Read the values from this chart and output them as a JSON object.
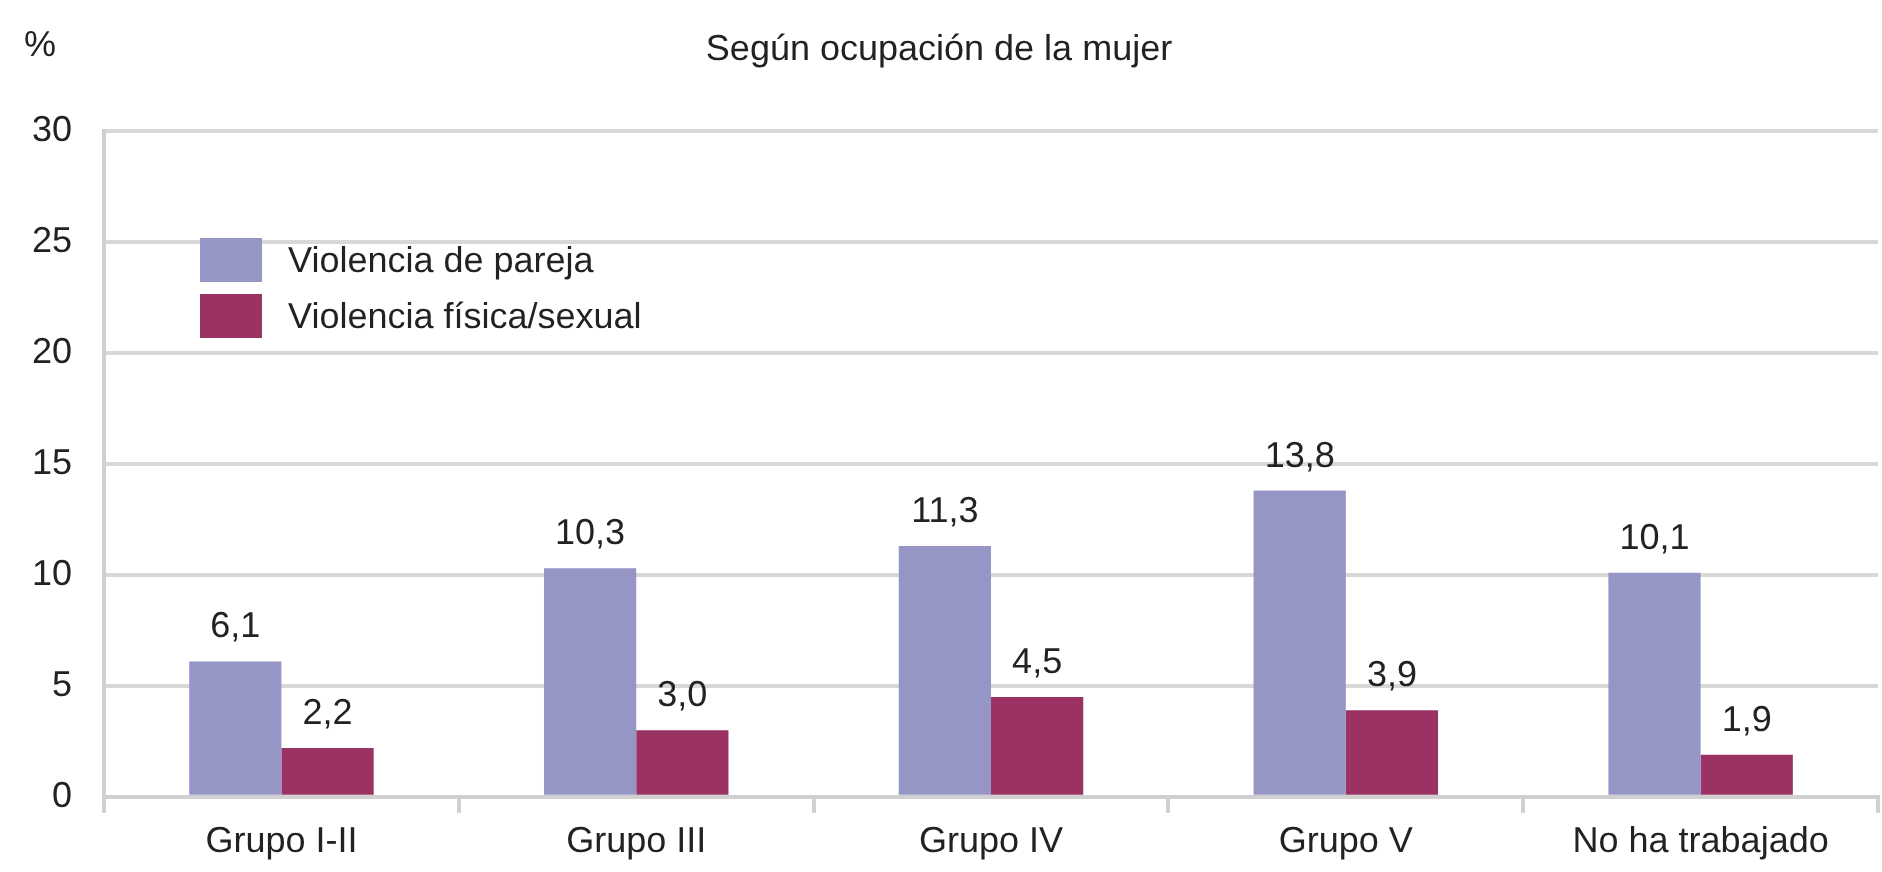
{
  "chart_data": {
    "type": "bar",
    "title": "Según ocupación de la mujer",
    "ylabel": "%",
    "categories": [
      "Grupo I-II",
      "Grupo III",
      "Grupo IV",
      "Grupo V",
      "No ha trabajado"
    ],
    "series": [
      {
        "name": "Violencia de pareja",
        "color": "#9595c6",
        "values": [
          6.1,
          10.3,
          11.3,
          13.8,
          10.1
        ],
        "value_labels": [
          "6,1",
          "10,3",
          "11,3",
          "13,8",
          "10,1"
        ]
      },
      {
        "name": "Violencia física/sexual",
        "color": "#9b3264",
        "values": [
          2.2,
          3.0,
          4.5,
          3.9,
          1.9
        ],
        "value_labels": [
          "2,2",
          "3,0",
          "4,5",
          "3,9",
          "1,9"
        ]
      }
    ],
    "ylim": [
      0,
      30
    ],
    "yticks": [
      0,
      5,
      10,
      15,
      20,
      25,
      30
    ],
    "grid": "y",
    "legend": "top left"
  }
}
